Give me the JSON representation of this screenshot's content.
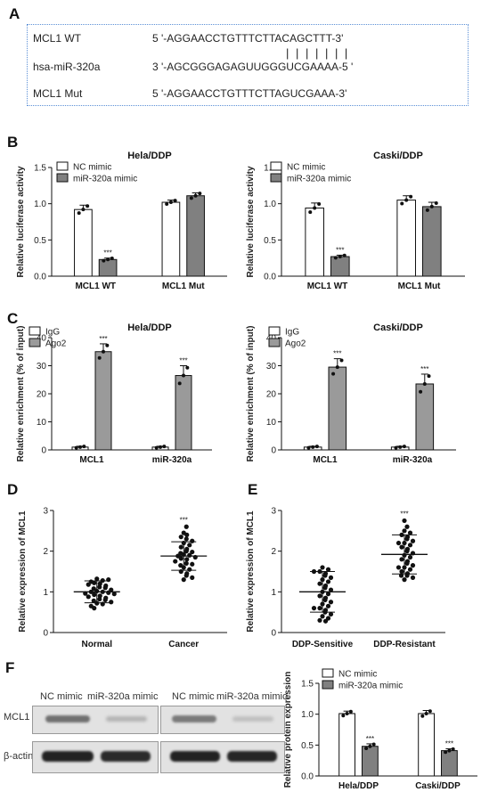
{
  "panels": {
    "A": "A",
    "B": "B",
    "C": "C",
    "D": "D",
    "E": "E",
    "F": "F"
  },
  "sequence": {
    "wt_label": "MCL1 WT",
    "wt_seq": "5 '-AGGAACCTGTTTCTTACAGCTTT-3'",
    "mir_label": "hsa-miR-320a",
    "mir_seq": "3 '-AGCGGGAGAGUUGGGUCGAAAA-5 '",
    "pairing": "| | | | | | |",
    "mut_label": "MCL1 Mut",
    "mut_seq": "5 '-AGGAACCTGTTTCTTAGUCGAAA-3'"
  },
  "blot": {
    "lanes": [
      "NC mimic",
      "miR-320a mimic",
      "NC mimic",
      "miR-320a mimic"
    ],
    "rows": [
      "MCL1",
      "β-actin"
    ]
  },
  "chart_data": [
    {
      "id": "B1",
      "type": "bar",
      "title": "Hela/DDP",
      "ylabel": "Relative luciferase activity",
      "ylim": [
        0,
        1.5
      ],
      "yticks": [
        "0.0",
        "0.5",
        "1.0",
        "1.5"
      ],
      "categories": [
        "MCL1 WT",
        "MCL1  Mut"
      ],
      "series": [
        {
          "name": "NC mimic",
          "color": "#ffffff",
          "values": [
            0.92,
            1.02
          ],
          "err": [
            0.06,
            0.03
          ]
        },
        {
          "name": "miR-320a mimic",
          "color": "#808080",
          "values": [
            0.23,
            1.11
          ],
          "err": [
            0.02,
            0.04
          ]
        }
      ],
      "annotations": [
        "***",
        ""
      ]
    },
    {
      "id": "B2",
      "type": "bar",
      "title": "Caski/DDP",
      "ylabel": "Relative luciferase activity",
      "ylim": [
        0,
        1.5
      ],
      "yticks": [
        "0.0",
        "0.5",
        "1.0",
        "1.5"
      ],
      "categories": [
        "MCL1 WT",
        "MCL1  Mut"
      ],
      "series": [
        {
          "name": "NC mimic",
          "color": "#ffffff",
          "values": [
            0.94,
            1.05
          ],
          "err": [
            0.07,
            0.06
          ]
        },
        {
          "name": "miR-320a mimic",
          "color": "#808080",
          "values": [
            0.27,
            0.96
          ],
          "err": [
            0.02,
            0.06
          ]
        }
      ],
      "annotations": [
        "***",
        ""
      ]
    },
    {
      "id": "C1",
      "type": "bar",
      "title": "Hela/DDP",
      "ylabel": "Relative enrichment (% of input)",
      "ylim": [
        0,
        40
      ],
      "yticks": [
        "0",
        "10",
        "20",
        "30",
        "40"
      ],
      "categories": [
        "MCL1",
        "miR-320a"
      ],
      "series": [
        {
          "name": "IgG",
          "color": "#ffffff",
          "values": [
            1.0,
            1.0
          ],
          "err": [
            0.3,
            0.3
          ]
        },
        {
          "name": "Ago2",
          "color": "#9a9a9a",
          "values": [
            35.0,
            26.5
          ],
          "err": [
            2.8,
            3.5
          ]
        }
      ],
      "annotations": [
        "***",
        "***"
      ]
    },
    {
      "id": "C2",
      "type": "bar",
      "title": "Caski/DDP",
      "ylabel": "Relative enrichment (% of input)",
      "ylim": [
        0,
        40
      ],
      "yticks": [
        "0",
        "10",
        "20",
        "30",
        "40"
      ],
      "categories": [
        "MCL1",
        "miR-320a"
      ],
      "series": [
        {
          "name": "IgG",
          "color": "#ffffff",
          "values": [
            1.0,
            1.0
          ],
          "err": [
            0.3,
            0.3
          ]
        },
        {
          "name": "Ago2",
          "color": "#9a9a9a",
          "values": [
            29.5,
            23.5
          ],
          "err": [
            3.0,
            3.5
          ]
        }
      ],
      "annotations": [
        "***",
        "***"
      ]
    },
    {
      "id": "D",
      "type": "scatter",
      "ylabel": "Relative  expression of MCL1",
      "ylim": [
        0,
        3
      ],
      "yticks": [
        "0",
        "1",
        "2",
        "3"
      ],
      "categories": [
        "Normal",
        "Cancer"
      ],
      "groups": [
        {
          "name": "Normal",
          "mean": 1.0,
          "sd": 0.27,
          "values": [
            1.32,
            1.28,
            1.25,
            1.22,
            1.2,
            1.18,
            1.15,
            1.12,
            1.1,
            1.08,
            1.05,
            1.02,
            1.0,
            1.0,
            0.98,
            0.96,
            0.95,
            0.93,
            0.9,
            0.88,
            0.85,
            0.82,
            0.8,
            0.78,
            0.75,
            0.72,
            0.7,
            0.65,
            0.6,
            1.3
          ]
        },
        {
          "name": "Cancer",
          "mean": 1.88,
          "sd": 0.35,
          "values": [
            2.6,
            2.45,
            2.35,
            2.3,
            2.25,
            2.2,
            2.15,
            2.1,
            2.05,
            2.0,
            1.98,
            1.95,
            1.92,
            1.9,
            1.88,
            1.85,
            1.82,
            1.8,
            1.75,
            1.7,
            1.68,
            1.65,
            1.6,
            1.55,
            1.5,
            1.45,
            1.4,
            1.35,
            1.3,
            2.4
          ]
        }
      ],
      "annotations": [
        "",
        "***"
      ]
    },
    {
      "id": "E",
      "type": "scatter",
      "ylabel": "Relative  expression of MCL1",
      "ylim": [
        0,
        3
      ],
      "yticks": [
        "0",
        "1",
        "2",
        "3"
      ],
      "categories": [
        "DDP-Sensitive",
        "DDP-Resistant"
      ],
      "groups": [
        {
          "name": "DDP-Sensitive",
          "mean": 1.0,
          "sd": 0.5,
          "values": [
            1.6,
            1.55,
            1.5,
            1.45,
            1.4,
            1.35,
            1.3,
            1.25,
            1.2,
            1.15,
            1.1,
            1.05,
            1.0,
            0.95,
            0.9,
            0.85,
            0.8,
            0.75,
            0.7,
            0.65,
            0.6,
            0.55,
            0.5,
            0.45,
            0.4,
            0.35,
            0.3,
            0.28,
            1.5,
            0.6
          ]
        },
        {
          "name": "DDP-Resistant",
          "mean": 1.92,
          "sd": 0.48,
          "values": [
            2.75,
            2.6,
            2.5,
            2.4,
            2.35,
            2.3,
            2.25,
            2.2,
            2.15,
            2.1,
            2.05,
            2.0,
            1.95,
            1.9,
            1.85,
            1.8,
            1.75,
            1.7,
            1.65,
            1.6,
            1.55,
            1.5,
            1.45,
            1.4,
            1.35,
            1.3,
            2.45,
            2.2,
            1.6,
            1.4
          ]
        }
      ],
      "annotations": [
        "",
        "***"
      ]
    },
    {
      "id": "F",
      "type": "bar",
      "ylabel": "Relative protein expression",
      "ylim": [
        0,
        1.5
      ],
      "yticks": [
        "0.0",
        "0.5",
        "1.0",
        "1.5"
      ],
      "categories": [
        "Hela/DDP",
        "Caski/DDP"
      ],
      "series": [
        {
          "name": "NC mimic",
          "color": "#ffffff",
          "values": [
            1.01,
            1.01
          ],
          "err": [
            0.04,
            0.05
          ]
        },
        {
          "name": "miR-320a mimic",
          "color": "#808080",
          "values": [
            0.48,
            0.41
          ],
          "err": [
            0.04,
            0.03
          ]
        }
      ],
      "annotations": [
        "***",
        "***"
      ]
    }
  ]
}
